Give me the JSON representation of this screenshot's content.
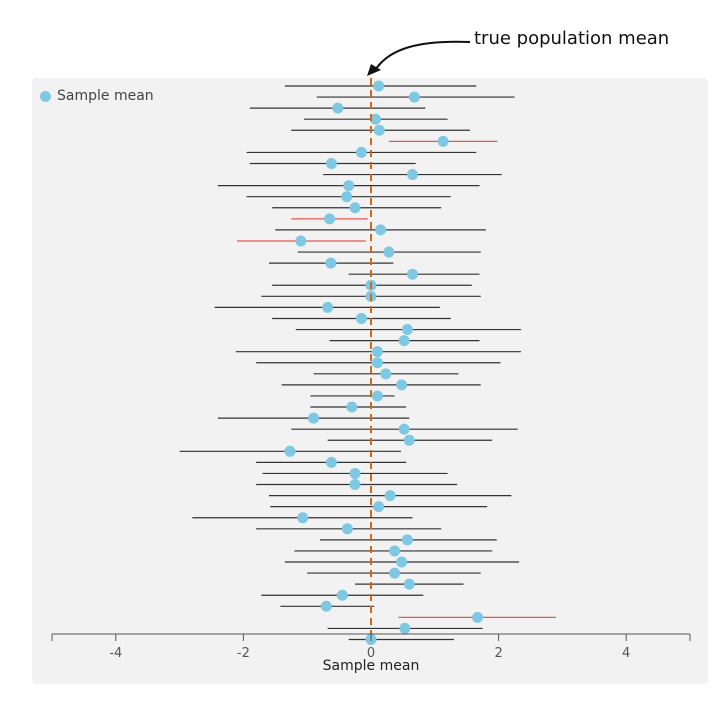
{
  "annotation": {
    "text": "true population mean"
  },
  "chart_data": {
    "type": "scatter",
    "title": "",
    "xlabel": "Sample mean",
    "ylabel": "",
    "xlim": [
      -5,
      5
    ],
    "x_ticks": [
      -4,
      -2,
      0,
      2,
      4
    ],
    "true_mean": 0,
    "legend": {
      "label": "Sample mean",
      "position": "top-left"
    },
    "grid": false,
    "colors": {
      "point": "#7ec8e3",
      "interval": "#333333",
      "interval_miss": "#e8584c",
      "mean_line": "#c96a1c",
      "axis": "#555555"
    },
    "series": [
      {
        "name": "Sample mean",
        "note": "intervals listed top to bottom",
        "intervals": [
          {
            "mean": 0.12,
            "low": -1.35,
            "high": 1.65
          },
          {
            "mean": 0.68,
            "low": -0.85,
            "high": 2.25
          },
          {
            "mean": -0.52,
            "low": -1.9,
            "high": 0.85
          },
          {
            "mean": 0.07,
            "low": -1.05,
            "high": 1.2
          },
          {
            "mean": 0.13,
            "low": -1.25,
            "high": 1.55
          },
          {
            "mean": 1.13,
            "low": 0.28,
            "high": 1.98
          },
          {
            "mean": -0.15,
            "low": -1.95,
            "high": 1.65
          },
          {
            "mean": -0.62,
            "low": -1.9,
            "high": 0.7
          },
          {
            "mean": 0.65,
            "low": -0.75,
            "high": 2.05
          },
          {
            "mean": -0.35,
            "low": -2.4,
            "high": 1.7
          },
          {
            "mean": -0.38,
            "low": -1.95,
            "high": 1.25
          },
          {
            "mean": -0.25,
            "low": -1.55,
            "high": 1.1
          },
          {
            "mean": -0.65,
            "low": -1.25,
            "high": -0.05
          },
          {
            "mean": 0.15,
            "low": -1.5,
            "high": 1.8
          },
          {
            "mean": -1.1,
            "low": -2.1,
            "high": -0.08
          },
          {
            "mean": 0.28,
            "low": -1.15,
            "high": 1.72
          },
          {
            "mean": -0.63,
            "low": -1.6,
            "high": 0.35
          },
          {
            "mean": 0.65,
            "low": -0.35,
            "high": 1.7
          },
          {
            "mean": 0.0,
            "low": -1.55,
            "high": 1.58
          },
          {
            "mean": 0.0,
            "low": -1.72,
            "high": 1.72
          },
          {
            "mean": -0.68,
            "low": -2.45,
            "high": 1.08
          },
          {
            "mean": -0.15,
            "low": -1.55,
            "high": 1.25
          },
          {
            "mean": 0.57,
            "low": -1.18,
            "high": 2.35
          },
          {
            "mean": 0.52,
            "low": -0.65,
            "high": 1.7
          },
          {
            "mean": 0.1,
            "low": -2.12,
            "high": 2.35
          },
          {
            "mean": 0.1,
            "low": -1.8,
            "high": 2.03
          },
          {
            "mean": 0.23,
            "low": -0.9,
            "high": 1.37
          },
          {
            "mean": 0.48,
            "low": -1.4,
            "high": 1.72
          },
          {
            "mean": 0.1,
            "low": -0.95,
            "high": 0.37
          },
          {
            "mean": -0.3,
            "low": -0.95,
            "high": 0.55
          },
          {
            "mean": -0.9,
            "low": -2.4,
            "high": 0.6
          },
          {
            "mean": 0.52,
            "low": -1.25,
            "high": 2.3
          },
          {
            "mean": 0.6,
            "low": -0.68,
            "high": 1.9
          },
          {
            "mean": -1.27,
            "low": -3.0,
            "high": 0.47
          },
          {
            "mean": -0.62,
            "low": -1.8,
            "high": 0.55
          },
          {
            "mean": -0.25,
            "low": -1.7,
            "high": 1.2
          },
          {
            "mean": -0.25,
            "low": -1.8,
            "high": 1.35
          },
          {
            "mean": 0.3,
            "low": -1.6,
            "high": 2.2
          },
          {
            "mean": 0.12,
            "low": -1.58,
            "high": 1.82
          },
          {
            "mean": -1.07,
            "low": -2.8,
            "high": 0.65
          },
          {
            "mean": -0.37,
            "low": -1.8,
            "high": 1.1
          },
          {
            "mean": 0.57,
            "low": -0.8,
            "high": 1.97
          },
          {
            "mean": 0.37,
            "low": -1.2,
            "high": 1.9
          },
          {
            "mean": 0.48,
            "low": -1.35,
            "high": 2.32
          },
          {
            "mean": 0.37,
            "low": -1.0,
            "high": 1.72
          },
          {
            "mean": 0.6,
            "low": -0.25,
            "high": 1.45
          },
          {
            "mean": -0.45,
            "low": -1.72,
            "high": 0.82
          },
          {
            "mean": -0.7,
            "low": -1.42,
            "high": 0.05
          },
          {
            "mean": 1.67,
            "low": 0.43,
            "high": 2.9
          },
          {
            "mean": 0.53,
            "low": -0.68,
            "high": 1.75
          },
          {
            "mean": 0.0,
            "low": -0.35,
            "high": 1.3
          }
        ]
      }
    ]
  }
}
